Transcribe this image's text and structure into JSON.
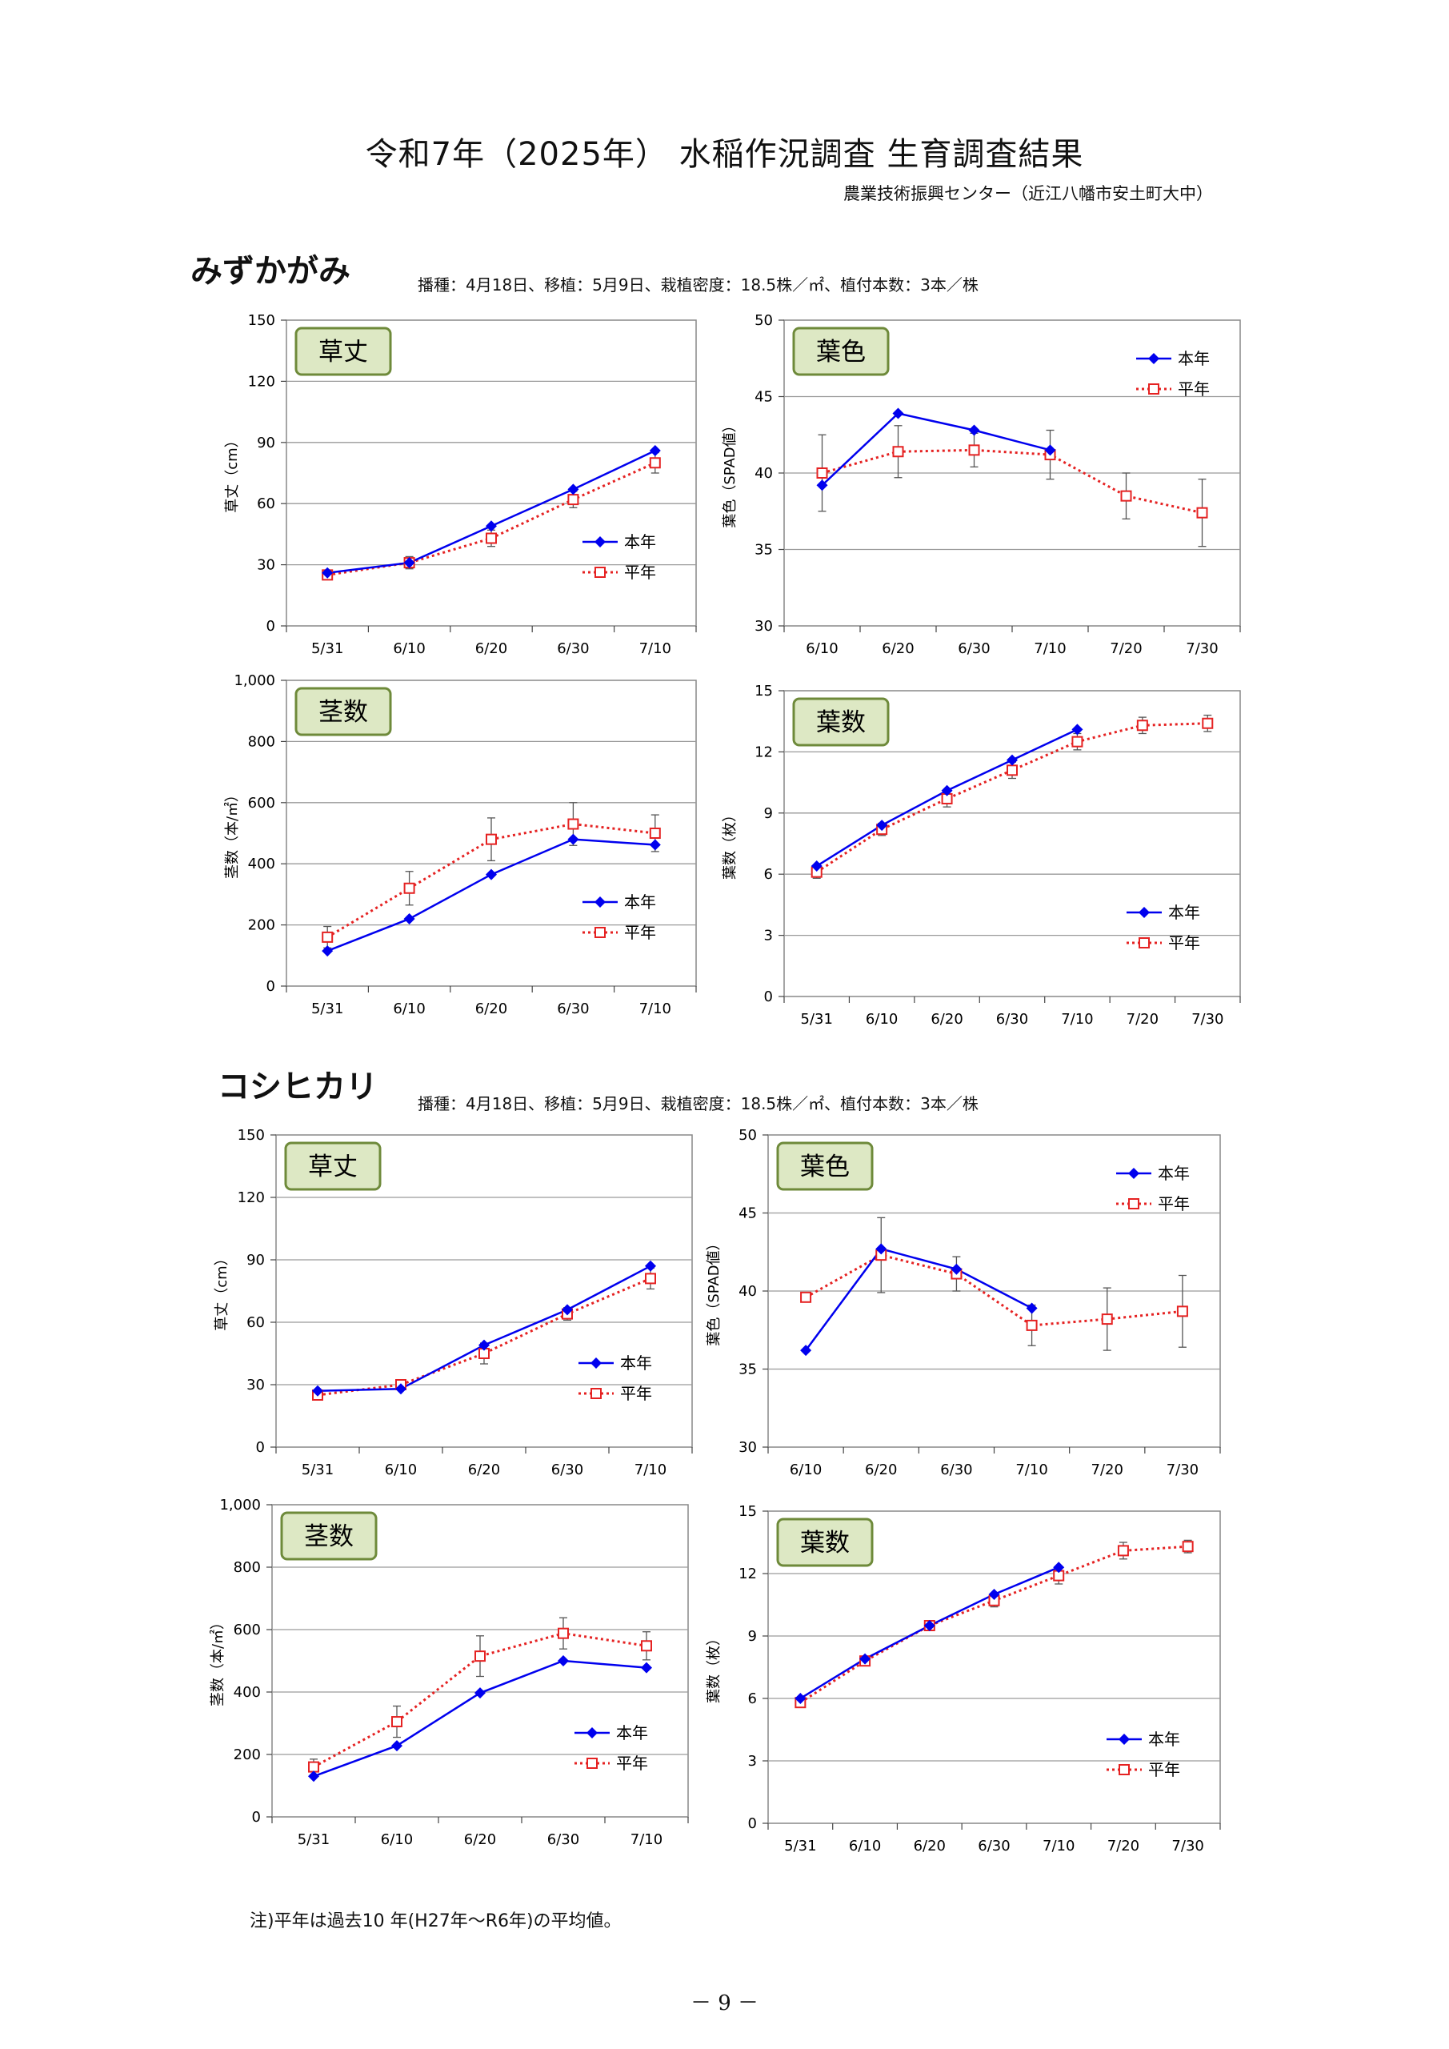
{
  "header": {
    "title": "令和7年（2025年） 水稲作況調査 生育調査結果",
    "org": "農業技術振興センター（近江八幡市安土町大中）"
  },
  "sections": [
    {
      "variety": "みずかがみ",
      "conditions": "播種：4月18日、移植：5月9日、栽植密度：18.5株／㎡、植付本数：3本／株"
    },
    {
      "variety": "コシヒカリ",
      "conditions": "播種：4月18日、移植：5月9日、栽植密度：18.5株／㎡、植付本数：3本／株"
    }
  ],
  "footer": {
    "note": "注)平年は過去10 年(H27年～R6年)の平均値。",
    "page": "－ 9 －"
  },
  "colors": {
    "current": "#0000ee",
    "average": "#e52222",
    "panel": "#dde8c4",
    "panel_border": "#6e8a3a"
  },
  "chart_data": [
    {
      "type": "line",
      "panel": "草丈",
      "ylabel": "草丈（cm）",
      "ylim": [
        0,
        150
      ],
      "yticks": [
        "0",
        "30",
        "60",
        "90",
        "120",
        "150"
      ],
      "categories": [
        "5/31",
        "6/10",
        "6/20",
        "6/30",
        "7/10"
      ],
      "series": [
        {
          "name": "本年",
          "values": [
            26,
            31,
            49,
            67,
            86
          ]
        },
        {
          "name": "平年",
          "values": [
            25,
            31,
            43,
            62,
            80
          ],
          "err": [
            2,
            3,
            4,
            4,
            5
          ]
        }
      ],
      "grid": true,
      "legend": "bottom-right"
    },
    {
      "type": "line",
      "panel": "葉色",
      "ylabel": "葉色（SPAD値）",
      "ylim": [
        30,
        50
      ],
      "yticks": [
        "30",
        "35",
        "40",
        "45",
        "50"
      ],
      "categories": [
        "6/10",
        "6/20",
        "6/30",
        "7/10",
        "7/20",
        "7/30"
      ],
      "series": [
        {
          "name": "本年",
          "values": [
            39.2,
            43.9,
            42.8,
            41.5,
            null,
            null
          ]
        },
        {
          "name": "平年",
          "values": [
            40.0,
            41.4,
            41.5,
            41.2,
            38.5,
            37.4
          ],
          "err": [
            2.5,
            1.7,
            1.1,
            1.6,
            1.5,
            2.2
          ]
        }
      ],
      "grid": true,
      "legend": "top-right"
    },
    {
      "type": "line",
      "panel": "茎数",
      "ylabel": "茎数（本/㎡）",
      "ylim": [
        0,
        1000
      ],
      "yticks": [
        "0",
        "200",
        "400",
        "600",
        "800",
        "1,000"
      ],
      "categories": [
        "5/31",
        "6/10",
        "6/20",
        "6/30",
        "7/10"
      ],
      "series": [
        {
          "name": "本年",
          "values": [
            115,
            220,
            365,
            480,
            462
          ]
        },
        {
          "name": "平年",
          "values": [
            160,
            320,
            480,
            530,
            500
          ],
          "err": [
            35,
            55,
            70,
            70,
            60
          ]
        }
      ],
      "grid": true,
      "legend": "bottom-right"
    },
    {
      "type": "line",
      "panel": "葉数",
      "ylabel": "葉数（枚）",
      "ylim": [
        0,
        15
      ],
      "yticks": [
        "0",
        "3",
        "6",
        "9",
        "12",
        "15"
      ],
      "categories": [
        "5/31",
        "6/10",
        "6/20",
        "6/30",
        "7/10",
        "7/20",
        "7/30"
      ],
      "series": [
        {
          "name": "本年",
          "values": [
            6.4,
            8.4,
            10.1,
            11.6,
            13.1,
            null,
            null
          ]
        },
        {
          "name": "平年",
          "values": [
            6.1,
            8.2,
            9.7,
            11.1,
            12.5,
            13.3,
            13.4
          ],
          "err": [
            0.3,
            0.3,
            0.4,
            0.4,
            0.4,
            0.4,
            0.4
          ]
        }
      ],
      "grid": true,
      "legend": "bottom-right"
    },
    {
      "type": "line",
      "panel": "草丈",
      "ylabel": "草丈（cm）",
      "ylim": [
        0,
        150
      ],
      "yticks": [
        "0",
        "30",
        "60",
        "90",
        "120",
        "150"
      ],
      "categories": [
        "5/31",
        "6/10",
        "6/20",
        "6/30",
        "7/10"
      ],
      "series": [
        {
          "name": "本年",
          "values": [
            27,
            28,
            49,
            66,
            87
          ]
        },
        {
          "name": "平年",
          "values": [
            25,
            30,
            45,
            64,
            81
          ],
          "err": [
            2,
            2,
            5,
            3,
            5
          ]
        }
      ],
      "grid": true,
      "legend": "bottom-right"
    },
    {
      "type": "line",
      "panel": "葉色",
      "ylabel": "葉色（SPAD値）",
      "ylim": [
        30,
        50
      ],
      "yticks": [
        "30",
        "35",
        "40",
        "45",
        "50"
      ],
      "categories": [
        "6/10",
        "6/20",
        "6/30",
        "7/10",
        "7/20",
        "7/30"
      ],
      "series": [
        {
          "name": "本年",
          "values": [
            36.2,
            42.7,
            41.4,
            38.9,
            null,
            null
          ]
        },
        {
          "name": "平年",
          "values": [
            39.6,
            42.3,
            41.1,
            37.8,
            38.2,
            38.7
          ],
          "err": [
            null,
            2.4,
            1.1,
            1.3,
            2.0,
            2.3
          ]
        }
      ],
      "grid": true,
      "legend": "top-right"
    },
    {
      "type": "line",
      "panel": "茎数",
      "ylabel": "茎数（本/㎡）",
      "ylim": [
        0,
        1000
      ],
      "yticks": [
        "0",
        "200",
        "400",
        "600",
        "800",
        "1,000"
      ],
      "categories": [
        "5/31",
        "6/10",
        "6/20",
        "6/30",
        "7/10"
      ],
      "series": [
        {
          "name": "本年",
          "values": [
            130,
            228,
            397,
            500,
            478
          ]
        },
        {
          "name": "平年",
          "values": [
            160,
            305,
            515,
            588,
            548
          ],
          "err": [
            25,
            50,
            65,
            50,
            45
          ]
        }
      ],
      "grid": true,
      "legend": "bottom-right"
    },
    {
      "type": "line",
      "panel": "葉数",
      "ylabel": "葉数（枚）",
      "ylim": [
        0,
        15
      ],
      "yticks": [
        "0",
        "3",
        "6",
        "9",
        "12",
        "15"
      ],
      "categories": [
        "5/31",
        "6/10",
        "6/20",
        "6/30",
        "7/10",
        "7/20",
        "7/30"
      ],
      "series": [
        {
          "name": "本年",
          "values": [
            6.0,
            7.9,
            9.5,
            11.0,
            12.3,
            null,
            null
          ]
        },
        {
          "name": "平年",
          "values": [
            5.8,
            7.8,
            9.5,
            10.7,
            11.9,
            13.1,
            13.3
          ],
          "err": [
            0.2,
            0.2,
            0.2,
            0.3,
            0.4,
            0.4,
            0.3
          ]
        }
      ],
      "grid": true,
      "legend": "bottom-right"
    }
  ]
}
